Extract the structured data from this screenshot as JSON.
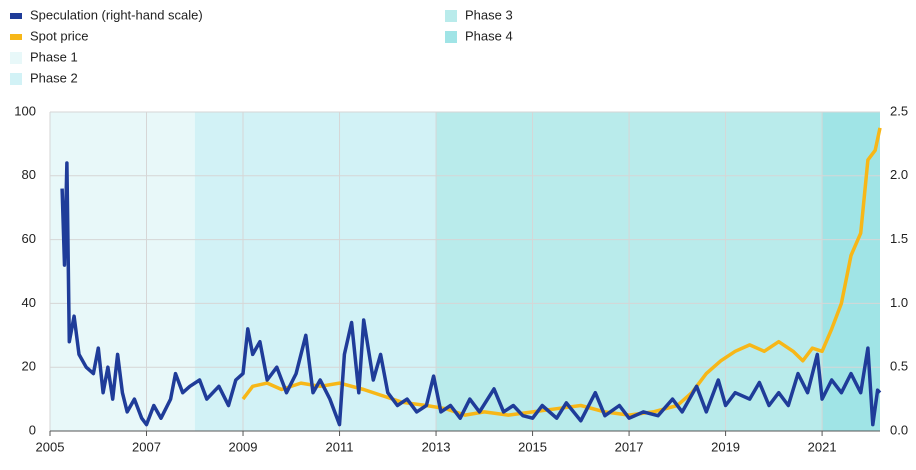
{
  "chart_data": {
    "type": "line",
    "xlim": [
      2005,
      2022.2
    ],
    "xticks": [
      2005,
      2007,
      2009,
      2011,
      2013,
      2015,
      2017,
      2019,
      2021
    ],
    "ylim": [
      0,
      100
    ],
    "yticks": [
      0,
      20,
      40,
      60,
      80,
      100
    ],
    "y2lim": [
      0,
      2.5
    ],
    "y2ticks": [
      {
        "value": 0,
        "label": "0.0"
      },
      0.5,
      {
        "value": 1,
        "label": "1.0"
      },
      1.5,
      {
        "value": 2,
        "label": "2.0"
      },
      2.5
    ],
    "grid": true,
    "series": [
      {
        "name": "Speculation (right-hand scale)",
        "color": "#1f3c99",
        "axis": "y2",
        "x": [
          2005.25,
          2005.3,
          2005.35,
          2005.4,
          2005.5,
          2005.6,
          2005.75,
          2005.9,
          2006.0,
          2006.1,
          2006.2,
          2006.3,
          2006.4,
          2006.5,
          2006.6,
          2006.75,
          2006.9,
          2007.0,
          2007.15,
          2007.3,
          2007.5,
          2007.6,
          2007.75,
          2007.9,
          2008.1,
          2008.25,
          2008.5,
          2008.7,
          2008.85,
          2009.0,
          2009.1,
          2009.2,
          2009.35,
          2009.5,
          2009.7,
          2009.9,
          2010.1,
          2010.3,
          2010.45,
          2010.6,
          2010.8,
          2011.0,
          2011.1,
          2011.25,
          2011.4,
          2011.5,
          2011.7,
          2011.85,
          2012.0,
          2012.2,
          2012.4,
          2012.6,
          2012.8,
          2012.95,
          2013.1,
          2013.3,
          2013.5,
          2013.7,
          2013.9,
          2014.2,
          2014.4,
          2014.6,
          2014.8,
          2015.0,
          2015.2,
          2015.5,
          2015.7,
          2016.0,
          2016.3,
          2016.5,
          2016.8,
          2017.0,
          2017.3,
          2017.6,
          2017.9,
          2018.1,
          2018.4,
          2018.6,
          2018.85,
          2019.0,
          2019.2,
          2019.5,
          2019.7,
          2019.9,
          2020.1,
          2020.3,
          2020.5,
          2020.7,
          2020.9,
          2021.0,
          2021.2,
          2021.4,
          2021.6,
          2021.8,
          2021.95,
          2022.05,
          2022.15,
          2022.2
        ],
        "values": [
          1.9,
          1.3,
          2.1,
          0.7,
          0.9,
          0.6,
          0.5,
          0.45,
          0.65,
          0.3,
          0.5,
          0.25,
          0.6,
          0.3,
          0.15,
          0.25,
          0.1,
          0.05,
          0.2,
          0.1,
          0.25,
          0.45,
          0.3,
          0.35,
          0.4,
          0.25,
          0.35,
          0.2,
          0.4,
          0.45,
          0.8,
          0.6,
          0.7,
          0.4,
          0.5,
          0.3,
          0.45,
          0.75,
          0.3,
          0.4,
          0.25,
          0.05,
          0.6,
          0.85,
          0.3,
          0.87,
          0.4,
          0.6,
          0.3,
          0.2,
          0.25,
          0.15,
          0.2,
          0.43,
          0.15,
          0.2,
          0.1,
          0.25,
          0.15,
          0.33,
          0.15,
          0.2,
          0.12,
          0.1,
          0.2,
          0.1,
          0.22,
          0.08,
          0.3,
          0.12,
          0.2,
          0.1,
          0.15,
          0.12,
          0.25,
          0.15,
          0.35,
          0.15,
          0.4,
          0.2,
          0.3,
          0.25,
          0.38,
          0.2,
          0.3,
          0.2,
          0.45,
          0.3,
          0.6,
          0.25,
          0.4,
          0.3,
          0.45,
          0.3,
          0.65,
          0.05,
          0.32,
          0.3
        ]
      },
      {
        "name": "Spot price",
        "color": "#f7b718",
        "x": [
          2009.0,
          2009.2,
          2009.5,
          2009.8,
          2010.2,
          2010.6,
          2011.0,
          2011.5,
          2011.9,
          2012.3,
          2012.8,
          2013.2,
          2013.6,
          2014.0,
          2014.5,
          2015.0,
          2015.5,
          2016.0,
          2016.5,
          2017.0,
          2017.5,
          2018.0,
          2018.3,
          2018.6,
          2018.9,
          2019.2,
          2019.5,
          2019.8,
          2020.1,
          2020.4,
          2020.6,
          2020.8,
          2021.0,
          2021.2,
          2021.4,
          2021.6,
          2021.8,
          2021.95,
          2022.1,
          2022.2
        ],
        "values": [
          10,
          14,
          15,
          13,
          15,
          14,
          15,
          13,
          11,
          9,
          8,
          7,
          5,
          6,
          5,
          6,
          7,
          8,
          6,
          5,
          6,
          8,
          12,
          18,
          22,
          25,
          27,
          25,
          28,
          25,
          22,
          26,
          25,
          32,
          40,
          55,
          62,
          85,
          88,
          95
        ]
      }
    ],
    "phases": [
      {
        "name": "Phase 1",
        "color": "#e8f8f9",
        "start": 2005,
        "end": 2008
      },
      {
        "name": "Phase 2",
        "color": "#d2f2f6",
        "start": 2008,
        "end": 2013
      },
      {
        "name": "Phase 3",
        "color": "#b9ebeb",
        "start": 2013,
        "end": 2021
      },
      {
        "name": "Phase 4",
        "color": "#a0e4e6",
        "start": 2021,
        "end": 2022.2
      }
    ]
  }
}
